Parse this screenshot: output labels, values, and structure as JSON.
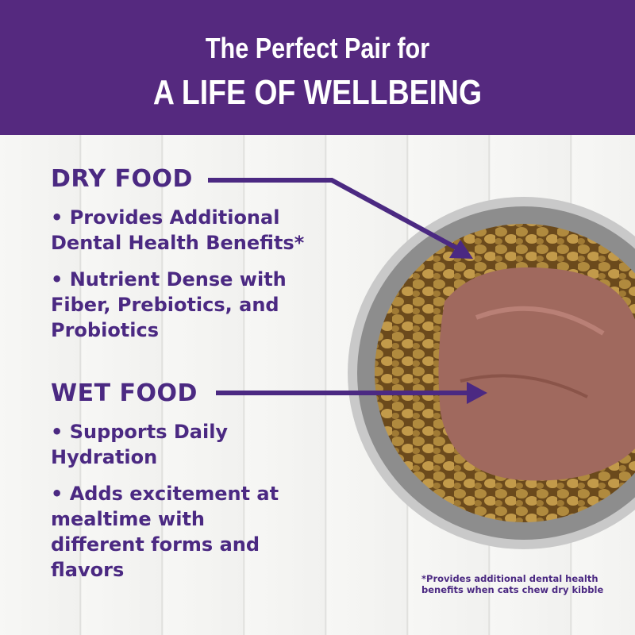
{
  "header": {
    "line1": "The Perfect Pair for",
    "line2": "A LIFE OF WELLBEING"
  },
  "dry": {
    "title": "DRY FOOD",
    "bullets": [
      "• Provides Additional Dental Health Benefits*",
      "• Nutrient Dense with Fiber, Prebiotics, and Probiotics"
    ]
  },
  "wet": {
    "title": "WET FOOD",
    "bullets": [
      "• Supports Daily Hydration",
      "• Adds excitement at mealtime with different forms and flavors"
    ]
  },
  "footnote": "*Provides additional dental health benefits when cats chew dry kibble",
  "colors": {
    "brand_purple": "#55297f",
    "text_purple": "#4b2982"
  }
}
